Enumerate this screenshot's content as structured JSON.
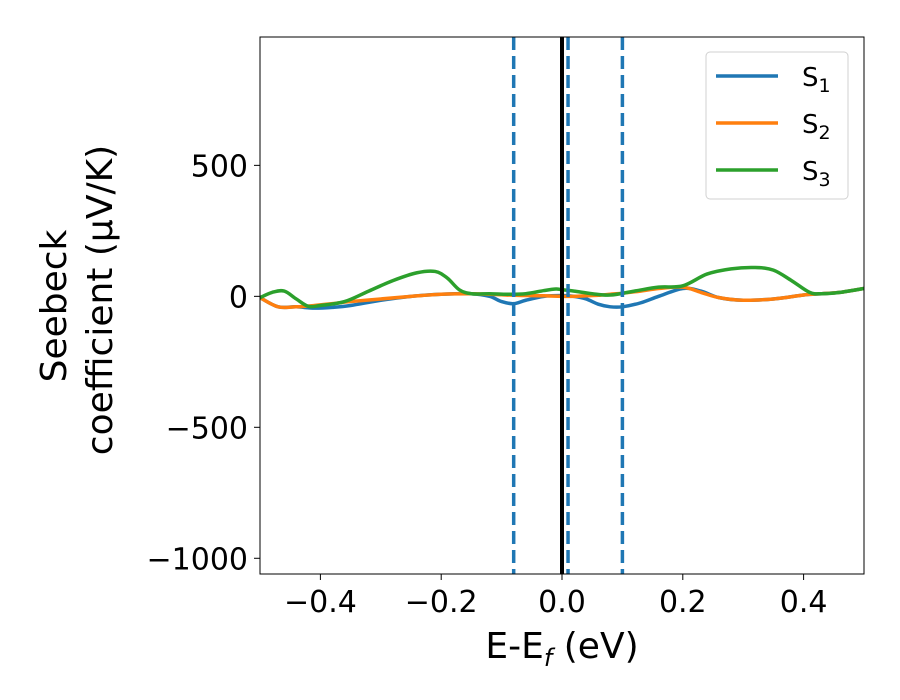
{
  "chart_data": {
    "type": "line",
    "title": "",
    "xlabel": "E-E",
    "xlabel_sub": "f",
    "xlabel_unit": " (eV)",
    "ylabel_line1": "Seebeck",
    "ylabel_line2": "coefficient  (μV/K)",
    "xlim": [
      -0.5,
      0.5
    ],
    "ylim": [
      -1060,
      990
    ],
    "xticks": [
      -0.4,
      -0.2,
      0.0,
      0.2,
      0.4
    ],
    "xtick_labels": [
      "−0.4",
      "−0.2",
      "0.0",
      "0.2",
      "0.4"
    ],
    "yticks": [
      -1000,
      -500,
      0,
      500
    ],
    "ytick_labels": [
      "−1000",
      "−500",
      "0",
      "500"
    ],
    "legend_position": "top-right",
    "series": [
      {
        "name": "S",
        "sub": "1",
        "color": "#1f77b4",
        "x": [
          -0.5,
          -0.47,
          -0.44,
          -0.41,
          -0.38,
          -0.35,
          -0.3,
          -0.25,
          -0.2,
          -0.15,
          -0.12,
          -0.1,
          -0.08,
          -0.06,
          -0.03,
          0.0,
          0.02,
          0.04,
          0.06,
          0.08,
          0.1,
          0.13,
          0.16,
          0.2,
          0.23,
          0.26,
          0.3,
          0.35,
          0.4,
          0.43,
          0.46,
          0.5
        ],
        "y": [
          -5,
          -40,
          -40,
          -45,
          -42,
          -35,
          -15,
          0,
          8,
          10,
          0,
          -20,
          -28,
          -15,
          0,
          3,
          0,
          -10,
          -30,
          -40,
          -40,
          -25,
          0,
          30,
          20,
          -5,
          -15,
          -10,
          5,
          10,
          15,
          30
        ]
      },
      {
        "name": "S",
        "sub": "2",
        "color": "#ff7f0e",
        "x": [
          -0.5,
          -0.47,
          -0.44,
          -0.41,
          -0.38,
          -0.35,
          -0.3,
          -0.25,
          -0.2,
          -0.15,
          -0.12,
          -0.1,
          -0.08,
          -0.06,
          -0.03,
          0.0,
          0.02,
          0.04,
          0.06,
          0.08,
          0.1,
          0.13,
          0.16,
          0.2,
          0.23,
          0.26,
          0.3,
          0.35,
          0.4,
          0.43,
          0.46,
          0.5
        ],
        "y": [
          -5,
          -40,
          -40,
          -35,
          -28,
          -20,
          -10,
          0,
          8,
          10,
          8,
          6,
          4,
          3,
          2,
          0,
          0,
          2,
          4,
          8,
          12,
          20,
          30,
          35,
          15,
          -5,
          -15,
          -10,
          5,
          10,
          15,
          30
        ]
      },
      {
        "name": "S",
        "sub": "3",
        "color": "#2ca02c",
        "x": [
          -0.5,
          -0.48,
          -0.46,
          -0.44,
          -0.42,
          -0.4,
          -0.36,
          -0.32,
          -0.28,
          -0.24,
          -0.21,
          -0.19,
          -0.17,
          -0.15,
          -0.12,
          -0.09,
          -0.06,
          -0.03,
          -0.01,
          0.0,
          0.02,
          0.05,
          0.08,
          0.12,
          0.16,
          0.2,
          0.24,
          0.28,
          0.32,
          0.35,
          0.38,
          0.41,
          0.43,
          0.46,
          0.5
        ],
        "y": [
          -5,
          15,
          20,
          -10,
          -38,
          -35,
          -20,
          20,
          60,
          90,
          95,
          70,
          25,
          10,
          10,
          8,
          10,
          22,
          28,
          25,
          20,
          10,
          5,
          20,
          35,
          40,
          85,
          105,
          110,
          100,
          60,
          15,
          10,
          15,
          30
        ]
      }
    ],
    "vlines": [
      {
        "x": -0.08,
        "color": "#1f77b4",
        "style": "dashed"
      },
      {
        "x": 0.01,
        "color": "#1f77b4",
        "style": "dashed"
      },
      {
        "x": 0.1,
        "color": "#1f77b4",
        "style": "dashed"
      },
      {
        "x": 0.0,
        "color": "#000000",
        "style": "solid"
      }
    ]
  }
}
